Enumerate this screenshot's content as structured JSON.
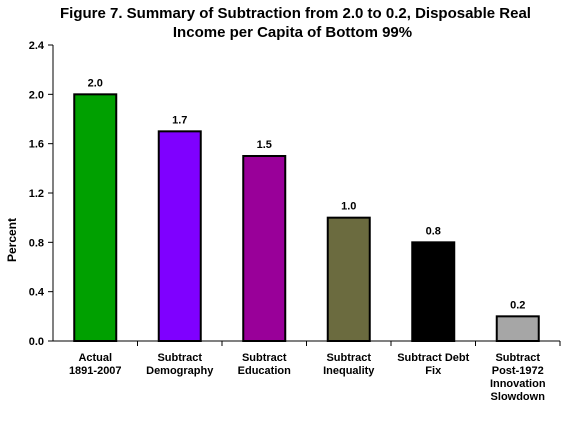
{
  "chart_data": {
    "type": "bar",
    "title_lines": [
      "Figure 7. Summary of Subtraction from 2.0 to 0.2, Disposable Real",
      "Income per Capita of Bottom 99%"
    ],
    "ylabel": "Percent",
    "xlabel": "",
    "ylim": [
      0,
      2.4
    ],
    "yticks": [
      "0.0",
      "0.4",
      "0.8",
      "1.2",
      "1.6",
      "2.0",
      "2.4"
    ],
    "grid": false,
    "legend": "none",
    "categories": [
      [
        "Actual",
        "1891-2007"
      ],
      [
        "Subtract",
        "Demography"
      ],
      [
        "Subtract",
        "Education"
      ],
      [
        "Subtract",
        "Inequality"
      ],
      [
        "Subtract Debt",
        "Fix"
      ],
      [
        "Subtract",
        "Post-1972",
        "Innovation",
        "Slowdown"
      ]
    ],
    "values": [
      2.0,
      1.7,
      1.5,
      1.0,
      0.8,
      0.2
    ],
    "data_labels": [
      "2.0",
      "1.7",
      "1.5",
      "1.0",
      "0.8",
      "0.2"
    ],
    "colors": [
      "#00a000",
      "#7f00ff",
      "#990099",
      "#6b6b3f",
      "#000000",
      "#a6a6a6"
    ]
  }
}
